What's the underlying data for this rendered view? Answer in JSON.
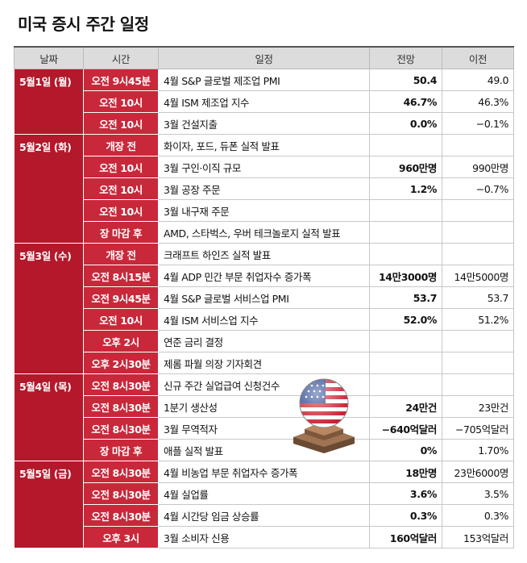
{
  "header": {
    "title": "미국 증시 주간 일정"
  },
  "table": {
    "columns": [
      "날짜",
      "시간",
      "일정",
      "전망",
      "이전"
    ],
    "groups": [
      {
        "date": "5월1일 (월)",
        "rows": [
          {
            "time": "오전 9시45분",
            "event": "4월 S&P 글로벌 제조업 PMI",
            "forecast": "50.4",
            "previous": "49.0"
          },
          {
            "time": "오전 10시",
            "event": "4월 ISM 제조업 지수",
            "forecast": "46.7%",
            "previous": "46.3%"
          },
          {
            "time": "오전 10시",
            "event": "3월 건설지출",
            "forecast": "0.0%",
            "previous": "−0.1%"
          }
        ]
      },
      {
        "date": "5월2일 (화)",
        "rows": [
          {
            "time": "개장 전",
            "event": "화이자, 포드, 듀폰 실적 발표"
          },
          {
            "time": "오전 10시",
            "event": "3월 구인·이직 규모",
            "forecast": "960만명",
            "previous": "990만명"
          },
          {
            "time": "오전 10시",
            "event": "3월 공장 주문",
            "forecast": "1.2%",
            "previous": "−0.7%"
          },
          {
            "time": "오전 10시",
            "event": "3월 내구재 주문"
          },
          {
            "time": "장 마감 후",
            "event": "AMD, 스타벅스, 우버 테크놀로지 실적 발표"
          }
        ]
      },
      {
        "date": "5월3일 (수)",
        "rows": [
          {
            "time": "개장 전",
            "event": "크래프트 하인즈 실적 발표"
          },
          {
            "time": "오전 8시15분",
            "event": "4월 ADP 민간 부문 취업자수 증가폭",
            "forecast": "14만3000명",
            "previous": "14만5000명"
          },
          {
            "time": "오전 9시45분",
            "event": "4월 S&P 글로벌 서비스업 PMI",
            "forecast": "53.7",
            "previous": "53.7"
          },
          {
            "time": "오전 10시",
            "event": "4월 ISM 서비스업 지수",
            "forecast": "52.0%",
            "previous": "51.2%"
          },
          {
            "time": "오후 2시",
            "event": "연준 금리 결정"
          },
          {
            "time": "오후 2시30분",
            "event": "제롬 파월 의장 기자회견"
          }
        ]
      },
      {
        "date": "5월4일 (목)",
        "rows": [
          {
            "time": "오전 8시30분",
            "event": "신규 주간 실업급여 신청건수"
          },
          {
            "time": "오전 8시30분",
            "event": "1분기 생산성",
            "forecast": "24만건",
            "previous": "23만건"
          },
          {
            "time": "오전 8시30분",
            "event": "3월 무역적자",
            "forecast": "−640억달러",
            "previous": "−705억달러"
          },
          {
            "time": "장 마감 후",
            "event": "애플 실적 발표",
            "forecast": "0%",
            "previous": "1.70%"
          }
        ]
      },
      {
        "date": "5월5일 (금)",
        "rows": [
          {
            "time": "오전 8시30분",
            "event": "4월 비농업 부문 취업자수 증가폭",
            "forecast": "18만명",
            "previous": "23만6000명"
          },
          {
            "time": "오전 8시30분",
            "event": "4월 실업률",
            "forecast": "3.6%",
            "previous": "3.5%"
          },
          {
            "time": "오전 8시30분",
            "event": "4월 시간당 임금 상승률",
            "forecast": "0.3%",
            "previous": "0.3%"
          },
          {
            "time": "오후 3시",
            "event": "3월 소비자 신용",
            "forecast": "160억달러",
            "previous": "153억달러"
          }
        ]
      }
    ]
  }
}
